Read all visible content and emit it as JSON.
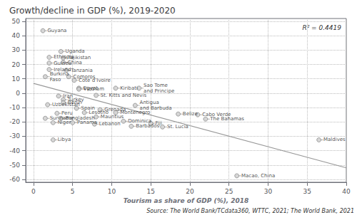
{
  "chart_data": {
    "type": "scatter",
    "title": "Growth/decline in GDP (%), 2019-2020",
    "xlabel": "Tourism as share of GDP (%), 2018",
    "annotation": "R² = 0.4419",
    "source": "Source: The World Bank/TCdata360, WTTC, 2021; The World Bank, 2021",
    "xlim": [
      -1,
      40
    ],
    "ylim": [
      -62,
      52
    ],
    "xticks": [
      0,
      5,
      10,
      15,
      20,
      25,
      30,
      35,
      40
    ],
    "yticks": [
      -60,
      -50,
      -40,
      -30,
      -20,
      -10,
      0,
      10,
      20,
      30,
      40,
      50
    ],
    "grid": true,
    "color": "#cccccc",
    "labels": [
      "Guyana",
      "Uganda",
      "Ethiopia",
      "Tajikistan",
      "Guinea",
      "China",
      "Ireland",
      "Tanzania",
      "Burkina\nFaso",
      "Comoros",
      "Cote d’Ivoire",
      "Egypt",
      "Vietnam",
      "Kiribati",
      "Sao Tome\nand Principe",
      "Iran",
      "Turkey",
      "Benin",
      "St. Kitts and Nevis",
      "Uzbekistan",
      "Spain",
      "Grenada",
      "Montenegro",
      "Antigua\nand Barbuda",
      "Peru",
      "Lesotho",
      "Mauritius",
      "Belize",
      "Cabo Verde",
      "The Bahamas",
      "Suriname",
      "Bangladesh",
      "Niger",
      "Panama",
      "Lebanon",
      "Dominica",
      "Barbados",
      "Fiji",
      "St. Lucia",
      "Libya",
      "Maldives",
      "Macao, China"
    ],
    "x": [
      1.2,
      3.5,
      2.0,
      3.8,
      2.0,
      3.8,
      2.0,
      4.2,
      1.5,
      4.5,
      5.2,
      5.8,
      5.8,
      10.5,
      13.5,
      3.2,
      3.8,
      3.8,
      8.0,
      1.8,
      5.5,
      8.5,
      10.5,
      13.0,
      3.0,
      6.5,
      8.0,
      18.5,
      21.0,
      22.0,
      1.5,
      3.5,
      2.5,
      5.0,
      7.8,
      11.5,
      12.5,
      15.0,
      16.5,
      2.5,
      36.5,
      26.0
    ],
    "values": [
      43.5,
      29.0,
      25.0,
      24.5,
      21.0,
      21.5,
      16.5,
      16.0,
      11.5,
      11.5,
      9.0,
      3.5,
      2.8,
      3.5,
      3.5,
      -2.0,
      -4.5,
      -6.5,
      -1.5,
      -8.0,
      -10.5,
      -11.5,
      -13.5,
      -8.5,
      -14.0,
      -13.5,
      -16.5,
      -14.5,
      -15.0,
      -18.0,
      -17.5,
      -17.5,
      -20.5,
      -20.5,
      -21.5,
      -19.5,
      -23.0,
      -21.0,
      -23.5,
      -32.5,
      -32.5,
      -57.5
    ],
    "trendline": {
      "x": [
        0,
        40
      ],
      "values": [
        6.849,
        -51.947
      ]
    }
  }
}
